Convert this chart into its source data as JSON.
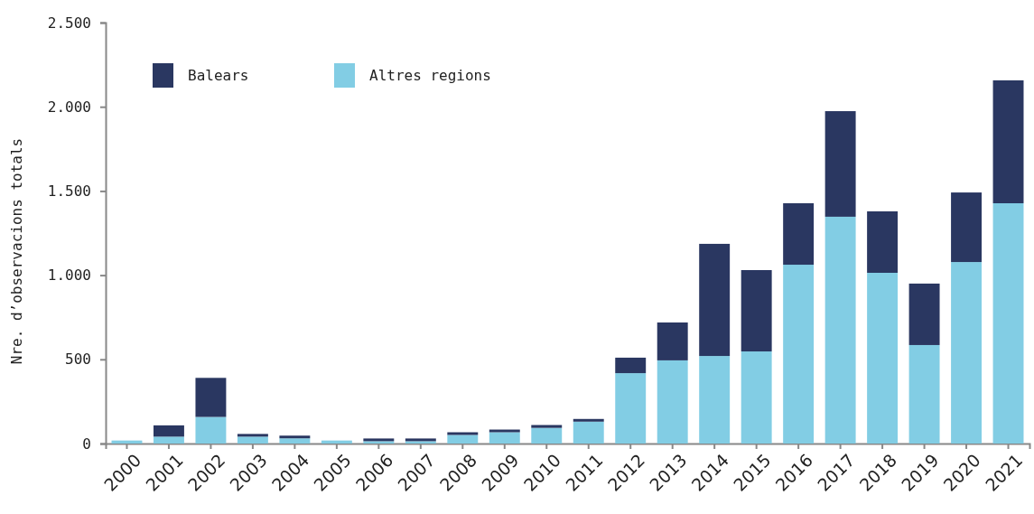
{
  "chart_data": {
    "type": "bar",
    "stacked": true,
    "ylabel": "Nre. d’observacions totals",
    "categories": [
      "2000",
      "2001",
      "2002",
      "2003",
      "2004",
      "2005",
      "2006",
      "2007",
      "2008",
      "2009",
      "2010",
      "2011",
      "2012",
      "2013",
      "2014",
      "2015",
      "2016",
      "2017",
      "2018",
      "2019",
      "2020",
      "2021"
    ],
    "series": [
      {
        "name": "Altres regions",
        "color": "#82cde4",
        "values": [
          18,
          41,
          158,
          41,
          31,
          18,
          14,
          14,
          51,
          67,
          93,
          130,
          418,
          494,
          520,
          547,
          1062,
          1347,
          1014,
          585,
          1078,
          1427
        ]
      },
      {
        "name": "Balears",
        "color": "#2a3761",
        "values": [
          0,
          67,
          232,
          16,
          16,
          0,
          16,
          16,
          16,
          16,
          17,
          16,
          92,
          225,
          666,
          483,
          365,
          627,
          365,
          365,
          413,
          730
        ]
      }
    ],
    "ylim": [
      0,
      2500
    ],
    "yticks": [
      0,
      500,
      {
        "value": 1000,
        "label": "1.000"
      },
      {
        "value": 1500,
        "label": "1.500"
      },
      {
        "value": 2000,
        "label": "2.000"
      },
      {
        "value": 2500,
        "label": "2.500"
      }
    ],
    "grid": false,
    "legend": "top left"
  }
}
